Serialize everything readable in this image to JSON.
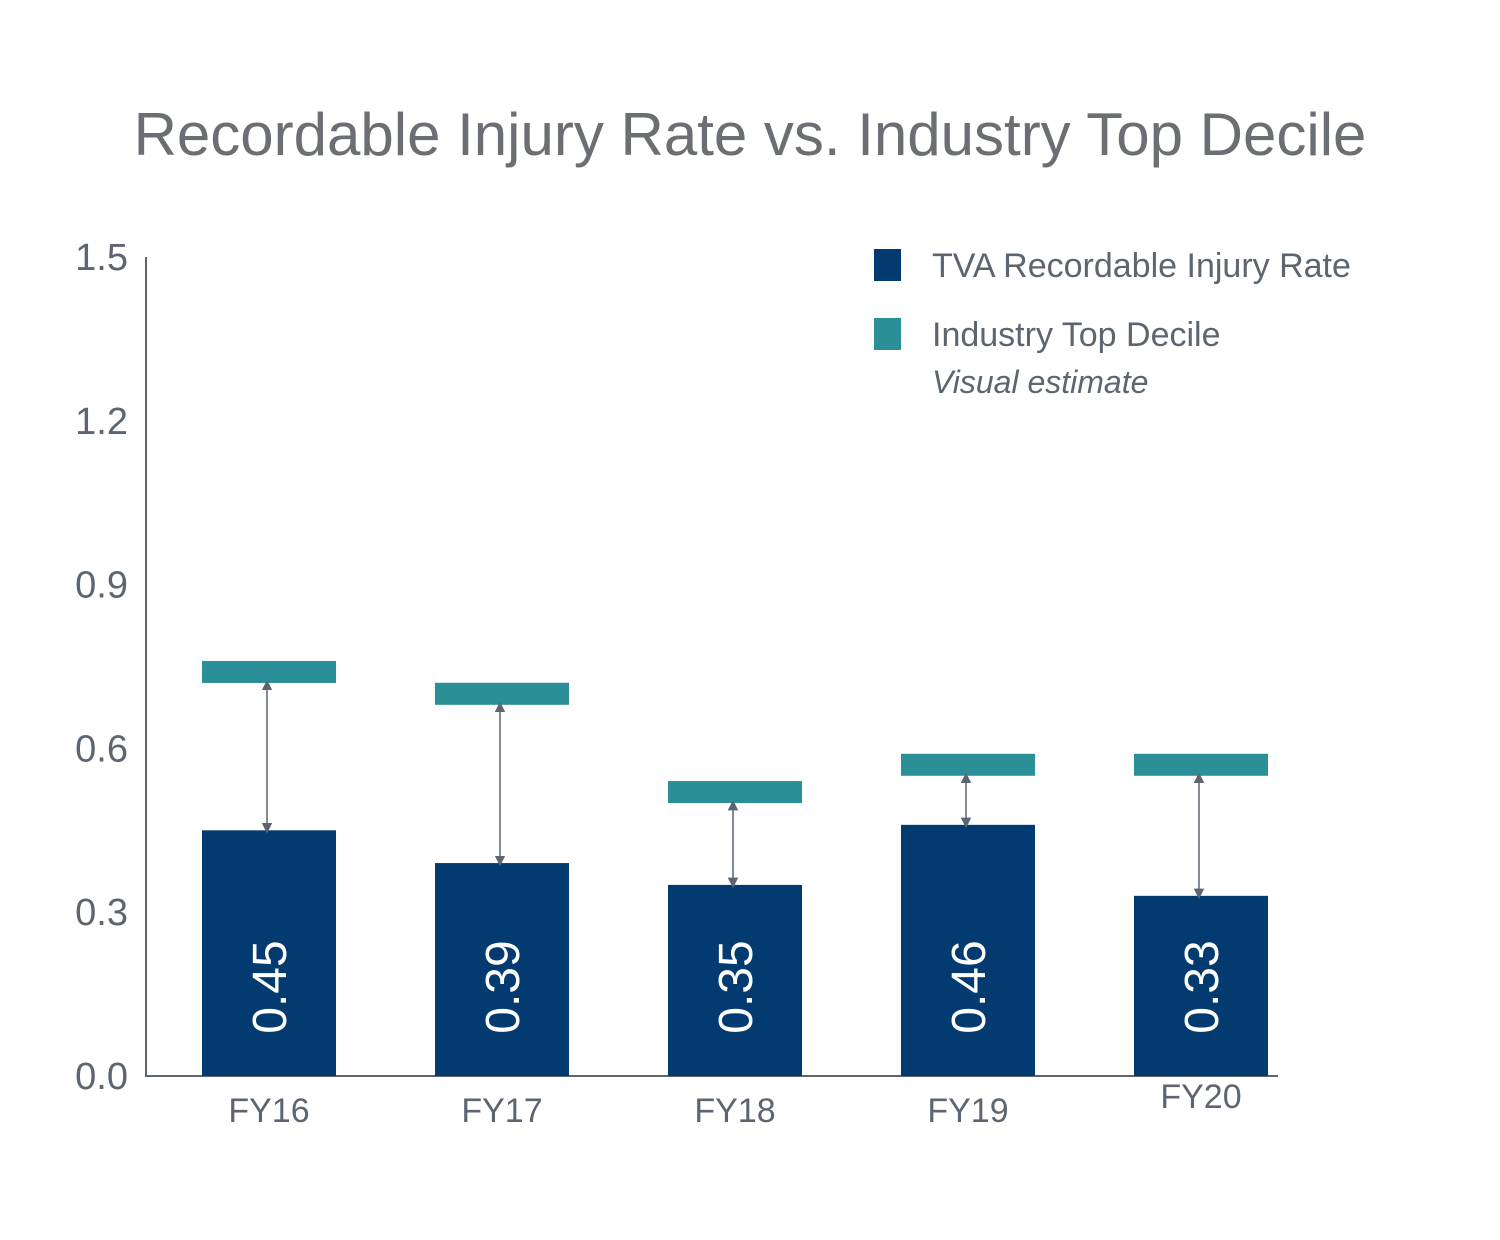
{
  "chart_data": {
    "type": "bar",
    "title": "Recordable Injury Rate vs. Industry Top Decile",
    "xlabel": "",
    "ylabel": "",
    "ylim": [
      0,
      1.5
    ],
    "yticks": [
      "0.0",
      "0.3",
      "0.6",
      "0.9",
      "1.2",
      "1.5"
    ],
    "categories": [
      "FY16",
      "FY17",
      "FY18",
      "FY19",
      "FY20"
    ],
    "series": [
      {
        "name": "TVA Recordable Injury Rate",
        "color": "#033a70",
        "values": [
          0.45,
          0.39,
          0.35,
          0.46,
          0.33
        ],
        "labels": [
          "0.45",
          "0.39",
          "0.35",
          "0.46",
          "0.33"
        ]
      },
      {
        "name": "Industry Top Decile",
        "note": "Visual estimate",
        "color": "#2a8f96",
        "values": [
          0.74,
          0.7,
          0.52,
          0.57,
          0.57
        ]
      }
    ],
    "legend_position": "top-right",
    "gap_arrows": true
  }
}
